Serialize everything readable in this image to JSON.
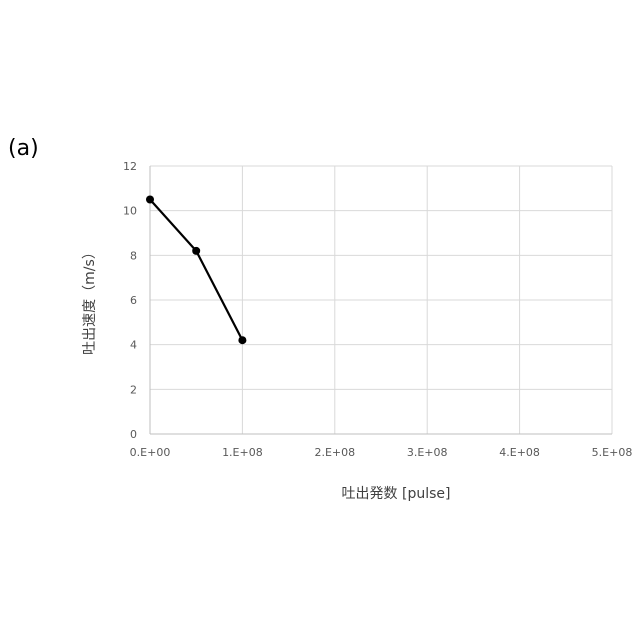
{
  "panel_label": "(a)",
  "chart_data": {
    "type": "scatter",
    "title": "",
    "xlabel": "吐出発数 [pulse]",
    "ylabel": "吐出速度（m/s）",
    "xlim": [
      0,
      500000000
    ],
    "ylim": [
      0,
      12
    ],
    "x_ticks": [
      0,
      100000000,
      200000000,
      300000000,
      400000000,
      500000000
    ],
    "x_tick_labels": [
      "0.E+00",
      "1.E+08",
      "2.E+08",
      "3.E+08",
      "4.E+08",
      "5.E+08"
    ],
    "y_ticks": [
      0,
      2,
      4,
      6,
      8,
      10,
      12
    ],
    "y_tick_labels": [
      "0",
      "2",
      "4",
      "6",
      "8",
      "10",
      "12"
    ],
    "grid": true,
    "legend": "none",
    "series": [
      {
        "x": [
          0,
          50000000,
          100000000
        ],
        "y": [
          10.5,
          8.2,
          4.2
        ],
        "color": "#000000",
        "marker": "circle",
        "lines": true
      }
    ]
  }
}
